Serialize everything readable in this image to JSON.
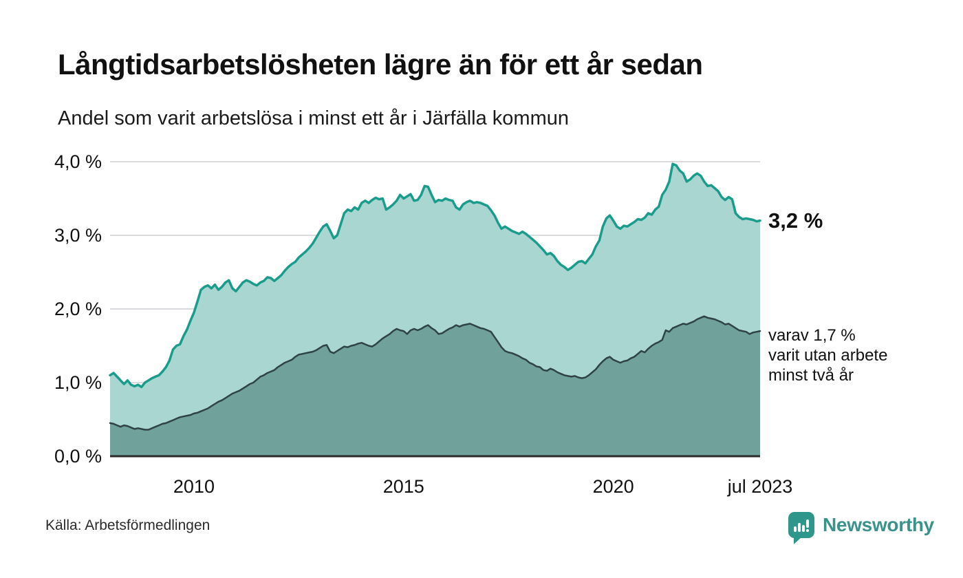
{
  "header": {
    "title": "Långtidsarbetslösheten lägre än för ett år sedan",
    "subtitle": "Andel som varit arbetslösa i minst ett år i Järfälla kommun"
  },
  "annotations": {
    "end_value_label": "3,2 %",
    "secondary_line1": "varav 1,7 %",
    "secondary_line2": "varit utan arbete",
    "secondary_line3": "minst två år"
  },
  "footer": {
    "source": "Källa: Arbetsförmedlingen",
    "brand": "Newsworthy",
    "brand_icon": "newsworthy-bar-chart-bubble-icon"
  },
  "colors": {
    "primary_line": "#1a9c8d",
    "primary_fill": "#a9d6d0",
    "secondary_line": "#2e4247",
    "secondary_fill": "#70a19b",
    "grid": "#d9dadd",
    "axis": "#2b2b2b",
    "text": "#111111",
    "brand": "#3a938b"
  },
  "chart_data": {
    "type": "area",
    "title": "Långtidsarbetslösheten lägre än för ett år sedan",
    "subtitle": "Andel som varit arbetslösa i minst ett år i Järfälla kommun",
    "unit": "%",
    "frequency": "monthly",
    "x_start": "2008-01",
    "x_end": "2023-07",
    "ylim": [
      0,
      4.0
    ],
    "grid": "horizontal",
    "legend_position": "none",
    "y_axis_ticks": [
      {
        "value": 0,
        "label": "0,0 %"
      },
      {
        "value": 1,
        "label": "1,0 %"
      },
      {
        "value": 2,
        "label": "2,0 %"
      },
      {
        "value": 3,
        "label": "3,0 %"
      },
      {
        "value": 4,
        "label": "4,0 %"
      }
    ],
    "x_axis_ticks": [
      {
        "label": "2010",
        "years_from_start": 2
      },
      {
        "label": "2015",
        "years_from_start": 7
      },
      {
        "label": "2020",
        "years_from_start": 12
      },
      {
        "label": "jul 2023",
        "years_from_start": 15.5
      }
    ],
    "series": [
      {
        "name": "Andel som varit arbetslösa minst ett år",
        "end_value": 3.2,
        "values": [
          1.1,
          1.13,
          1.08,
          1.03,
          0.98,
          1.03,
          0.97,
          0.95,
          0.97,
          0.94,
          1.0,
          1.03,
          1.06,
          1.08,
          1.1,
          1.15,
          1.21,
          1.3,
          1.45,
          1.5,
          1.52,
          1.63,
          1.72,
          1.84,
          1.95,
          2.1,
          2.26,
          2.3,
          2.32,
          2.28,
          2.33,
          2.26,
          2.3,
          2.36,
          2.39,
          2.28,
          2.24,
          2.3,
          2.36,
          2.39,
          2.37,
          2.34,
          2.32,
          2.36,
          2.38,
          2.43,
          2.42,
          2.38,
          2.42,
          2.46,
          2.52,
          2.57,
          2.61,
          2.64,
          2.7,
          2.74,
          2.78,
          2.83,
          2.89,
          2.97,
          3.05,
          3.12,
          3.15,
          3.06,
          2.96,
          3.0,
          3.15,
          3.3,
          3.35,
          3.33,
          3.38,
          3.35,
          3.44,
          3.47,
          3.44,
          3.48,
          3.51,
          3.49,
          3.5,
          3.35,
          3.38,
          3.42,
          3.47,
          3.55,
          3.5,
          3.53,
          3.56,
          3.47,
          3.48,
          3.55,
          3.67,
          3.66,
          3.55,
          3.45,
          3.48,
          3.47,
          3.5,
          3.48,
          3.47,
          3.38,
          3.35,
          3.42,
          3.45,
          3.47,
          3.44,
          3.45,
          3.44,
          3.42,
          3.4,
          3.34,
          3.27,
          3.17,
          3.09,
          3.12,
          3.09,
          3.06,
          3.04,
          3.02,
          3.05,
          3.02,
          2.98,
          2.94,
          2.9,
          2.85,
          2.8,
          2.74,
          2.76,
          2.72,
          2.65,
          2.6,
          2.57,
          2.53,
          2.56,
          2.6,
          2.64,
          2.65,
          2.62,
          2.68,
          2.74,
          2.85,
          2.93,
          3.12,
          3.23,
          3.27,
          3.2,
          3.12,
          3.09,
          3.13,
          3.12,
          3.15,
          3.18,
          3.22,
          3.21,
          3.24,
          3.3,
          3.28,
          3.35,
          3.39,
          3.55,
          3.62,
          3.73,
          3.97,
          3.95,
          3.88,
          3.84,
          3.73,
          3.76,
          3.81,
          3.84,
          3.81,
          3.73,
          3.67,
          3.68,
          3.64,
          3.6,
          3.52,
          3.48,
          3.52,
          3.49,
          3.3,
          3.25,
          3.22,
          3.23,
          3.22,
          3.21,
          3.19,
          3.2
        ]
      },
      {
        "name": "varav utan arbete minst två år",
        "end_value": 1.7,
        "values": [
          0.45,
          0.44,
          0.42,
          0.4,
          0.42,
          0.41,
          0.39,
          0.37,
          0.38,
          0.37,
          0.36,
          0.36,
          0.38,
          0.4,
          0.42,
          0.44,
          0.45,
          0.47,
          0.49,
          0.51,
          0.53,
          0.54,
          0.55,
          0.56,
          0.58,
          0.59,
          0.61,
          0.63,
          0.65,
          0.68,
          0.71,
          0.74,
          0.76,
          0.79,
          0.82,
          0.85,
          0.87,
          0.89,
          0.92,
          0.95,
          0.98,
          1.0,
          1.04,
          1.08,
          1.1,
          1.13,
          1.15,
          1.17,
          1.21,
          1.24,
          1.27,
          1.29,
          1.31,
          1.35,
          1.38,
          1.39,
          1.4,
          1.41,
          1.42,
          1.44,
          1.47,
          1.5,
          1.51,
          1.42,
          1.4,
          1.43,
          1.46,
          1.49,
          1.48,
          1.5,
          1.51,
          1.53,
          1.54,
          1.52,
          1.5,
          1.49,
          1.52,
          1.56,
          1.6,
          1.63,
          1.66,
          1.7,
          1.73,
          1.71,
          1.7,
          1.66,
          1.71,
          1.73,
          1.71,
          1.73,
          1.76,
          1.78,
          1.74,
          1.71,
          1.66,
          1.67,
          1.7,
          1.73,
          1.75,
          1.78,
          1.76,
          1.78,
          1.79,
          1.8,
          1.78,
          1.76,
          1.74,
          1.73,
          1.71,
          1.69,
          1.62,
          1.55,
          1.48,
          1.43,
          1.41,
          1.4,
          1.38,
          1.36,
          1.33,
          1.31,
          1.27,
          1.25,
          1.22,
          1.21,
          1.17,
          1.16,
          1.19,
          1.17,
          1.14,
          1.12,
          1.1,
          1.09,
          1.08,
          1.09,
          1.07,
          1.06,
          1.07,
          1.1,
          1.14,
          1.18,
          1.24,
          1.29,
          1.33,
          1.35,
          1.31,
          1.29,
          1.27,
          1.29,
          1.3,
          1.33,
          1.35,
          1.39,
          1.43,
          1.41,
          1.46,
          1.5,
          1.53,
          1.55,
          1.58,
          1.71,
          1.69,
          1.74,
          1.76,
          1.78,
          1.8,
          1.79,
          1.81,
          1.83,
          1.86,
          1.88,
          1.9,
          1.88,
          1.87,
          1.86,
          1.84,
          1.82,
          1.79,
          1.8,
          1.77,
          1.74,
          1.71,
          1.7,
          1.69,
          1.66,
          1.68,
          1.69,
          1.7
        ]
      }
    ]
  }
}
